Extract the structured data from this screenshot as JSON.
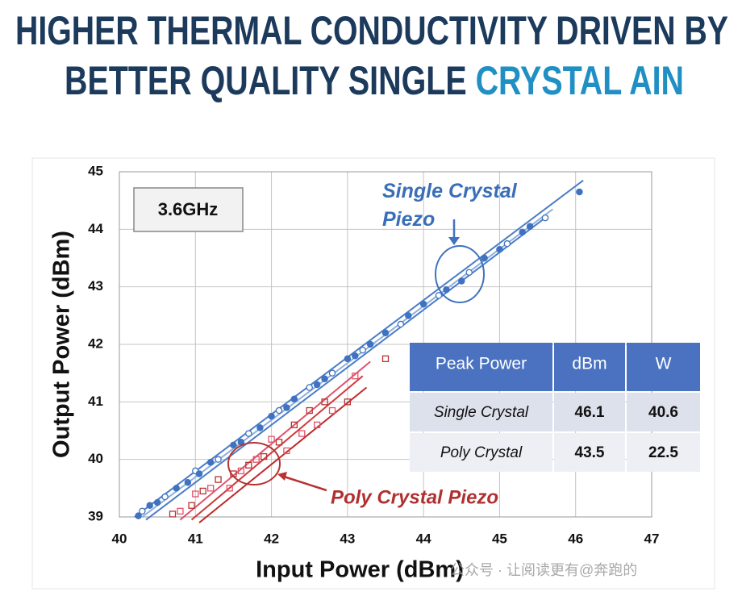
{
  "title": [
    "HIGHER THERMAL CONDUCTIVITY DRIVEN BY",
    "BETTER QUALITY SINGLE ",
    "CRYSTAL AIN"
  ],
  "chart_data": {
    "type": "scatter",
    "xlabel": "Input Power (dBm)",
    "ylabel": "Output Power (dBm)",
    "xlim": [
      40,
      47
    ],
    "xticks": [
      40,
      41,
      42,
      43,
      44,
      45,
      46,
      47
    ],
    "ylim": [
      39,
      45
    ],
    "yticks": [
      39,
      40,
      41,
      42,
      43,
      44,
      45
    ],
    "grid": true,
    "annotations": [
      "3.6GHz"
    ],
    "series": [
      {
        "name": "Single Crystal Piezo",
        "color": "#3f72c0",
        "x": [
          40.25,
          40.3,
          40.4,
          40.5,
          40.6,
          40.75,
          40.9,
          41.0,
          41.05,
          41.2,
          41.3,
          41.5,
          41.6,
          41.7,
          41.85,
          42.0,
          42.1,
          42.2,
          42.3,
          42.5,
          42.6,
          42.7,
          42.8,
          43.0,
          43.1,
          43.2,
          43.3,
          43.5,
          43.7,
          43.8,
          44.0,
          44.2,
          44.3,
          44.5,
          44.6,
          44.8,
          45.0,
          45.1,
          45.3,
          45.4,
          45.6,
          46.05
        ],
        "values": [
          39.02,
          39.1,
          39.2,
          39.25,
          39.35,
          39.5,
          39.6,
          39.8,
          39.75,
          39.95,
          40.0,
          40.25,
          40.3,
          40.45,
          40.55,
          40.75,
          40.85,
          40.9,
          41.05,
          41.25,
          41.3,
          41.4,
          41.5,
          41.75,
          41.8,
          41.9,
          42.0,
          42.2,
          42.35,
          42.5,
          42.7,
          42.85,
          42.95,
          43.1,
          43.25,
          43.5,
          43.65,
          43.75,
          43.95,
          44.05,
          44.2,
          44.65
        ]
      },
      {
        "name": "Poly Crystal Piezo",
        "color": "#b83232",
        "x": [
          40.7,
          40.8,
          40.95,
          41.0,
          41.1,
          41.2,
          41.3,
          41.45,
          41.5,
          41.6,
          41.7,
          41.8,
          41.9,
          42.0,
          42.1,
          42.2,
          42.3,
          42.4,
          42.5,
          42.6,
          42.7,
          42.8,
          43.0,
          43.1,
          43.5
        ],
        "values": [
          39.05,
          39.1,
          39.2,
          39.4,
          39.45,
          39.5,
          39.65,
          39.5,
          39.75,
          39.8,
          39.9,
          40.0,
          40.05,
          40.35,
          40.3,
          40.15,
          40.6,
          40.45,
          40.85,
          40.6,
          41.0,
          40.85,
          41.0,
          41.45,
          41.75
        ]
      }
    ],
    "fit_lines": [
      {
        "color": "#4a7cc8",
        "x": [
          40.2,
          46.1
        ],
        "values": [
          39.0,
          44.85
        ]
      },
      {
        "color": "#8fb0dc",
        "x": [
          40.3,
          45.7
        ],
        "values": [
          39.0,
          44.35
        ]
      },
      {
        "color": "#4a7cc8",
        "x": [
          40.35,
          45.6
        ],
        "values": [
          38.95,
          44.2
        ]
      },
      {
        "color": "#e0526a",
        "x": [
          40.8,
          43.3
        ],
        "values": [
          38.95,
          41.7
        ]
      },
      {
        "color": "#d03a3a",
        "x": [
          40.95,
          43.2
        ],
        "values": [
          38.95,
          41.45
        ]
      },
      {
        "color": "#c02a2a",
        "x": [
          41.05,
          43.25
        ],
        "values": [
          38.9,
          41.25
        ]
      }
    ]
  },
  "table": {
    "columns": [
      "Peak Power",
      "dBm",
      "W"
    ],
    "rows": [
      [
        "Single Crystal",
        46.1,
        40.6
      ],
      [
        "Poly Crystal",
        43.5,
        22.5
      ]
    ]
  },
  "watermark": "公众号 · 让阅读更有@奔跑的"
}
